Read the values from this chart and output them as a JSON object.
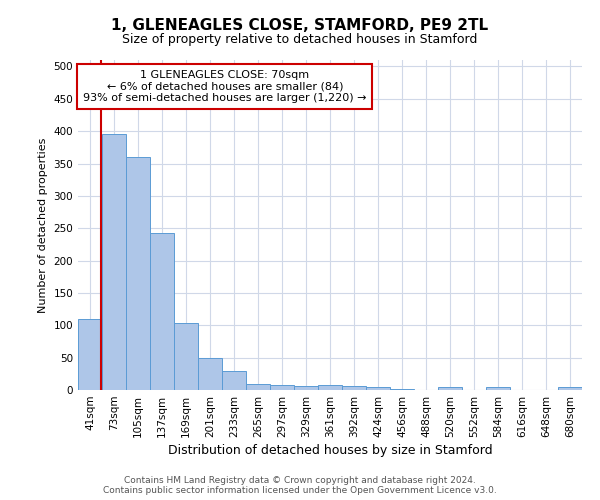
{
  "title": "1, GLENEAGLES CLOSE, STAMFORD, PE9 2TL",
  "subtitle": "Size of property relative to detached houses in Stamford",
  "xlabel": "Distribution of detached houses by size in Stamford",
  "ylabel": "Number of detached properties",
  "footer_line1": "Contains HM Land Registry data © Crown copyright and database right 2024.",
  "footer_line2": "Contains public sector information licensed under the Open Government Licence v3.0.",
  "bin_labels": [
    "41sqm",
    "73sqm",
    "105sqm",
    "137sqm",
    "169sqm",
    "201sqm",
    "233sqm",
    "265sqm",
    "297sqm",
    "329sqm",
    "361sqm",
    "392sqm",
    "424sqm",
    "456sqm",
    "488sqm",
    "520sqm",
    "552sqm",
    "584sqm",
    "616sqm",
    "648sqm",
    "680sqm"
  ],
  "bar_values": [
    110,
    395,
    360,
    242,
    104,
    50,
    30,
    10,
    7,
    6,
    7,
    6,
    5,
    1,
    0,
    4,
    0,
    4,
    0,
    0,
    4
  ],
  "bar_color": "#aec6e8",
  "bar_edge_color": "#5b9bd5",
  "grid_color": "#d0d8e8",
  "annotation_line1": "1 GLENEAGLES CLOSE: 70sqm",
  "annotation_line2": "← 6% of detached houses are smaller (84)",
  "annotation_line3": "93% of semi-detached houses are larger (1,220) →",
  "vline_color": "#cc0000",
  "ylim": [
    0,
    510
  ],
  "yticks": [
    0,
    50,
    100,
    150,
    200,
    250,
    300,
    350,
    400,
    450,
    500
  ],
  "background_color": "#ffffff",
  "title_fontsize": 11,
  "subtitle_fontsize": 9,
  "xlabel_fontsize": 9,
  "ylabel_fontsize": 8,
  "tick_fontsize": 7.5,
  "annotation_fontsize": 8,
  "footer_fontsize": 6.5
}
